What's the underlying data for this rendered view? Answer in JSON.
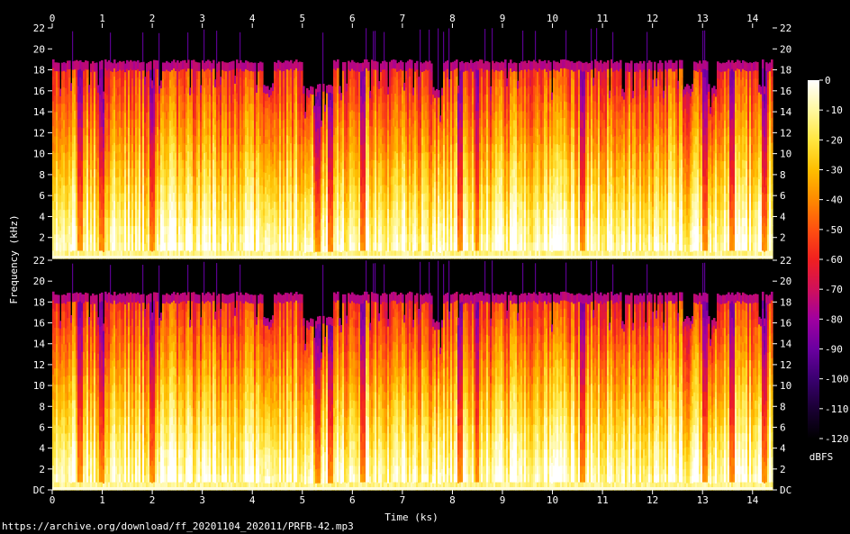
{
  "chart_data": {
    "type": "heatmap",
    "title": "",
    "xlabel": "Time (ks)",
    "ylabel": "Frequency (kHz)",
    "x_ticks": [
      "0",
      "1",
      "2",
      "3",
      "4",
      "5",
      "6",
      "7",
      "8",
      "9",
      "10",
      "11",
      "12",
      "13",
      "14"
    ],
    "xlim": [
      0,
      14.4
    ],
    "channels": [
      {
        "y_ticks": [
          "2",
          "4",
          "6",
          "8",
          "10",
          "12",
          "14",
          "16",
          "18",
          "20",
          "22"
        ],
        "ylim": [
          0,
          22
        ]
      },
      {
        "y_ticks": [
          "DC",
          "2",
          "4",
          "6",
          "8",
          "10",
          "12",
          "14",
          "16",
          "18",
          "20",
          "22"
        ],
        "ylim": [
          0,
          22
        ]
      }
    ],
    "colorbar": {
      "label": "dBFS",
      "ticks": [
        "0",
        "-10",
        "-20",
        "-30",
        "-40",
        "-50",
        "-60",
        "-70",
        "-80",
        "-90",
        "-100",
        "-110",
        "-120"
      ],
      "range": [
        -120,
        0
      ],
      "colors": [
        "#000000",
        "#1a0034",
        "#3a0070",
        "#6a00a0",
        "#a000a0",
        "#d0105a",
        "#f02020",
        "#ff5010",
        "#ff8a00",
        "#ffbe00",
        "#ffe640",
        "#fff8a0",
        "#ffffff"
      ]
    },
    "spectrum": {
      "cutoff_khz": 19,
      "low_cutoff_spans_ks": [
        [
          4.2,
          4.4
        ],
        [
          5.0,
          5.6
        ],
        [
          7.6,
          7.8
        ],
        [
          12.6,
          12.8
        ],
        [
          13.1,
          13.3
        ]
      ],
      "dropout_times_ks": [
        0.55,
        1.0,
        2.0,
        5.3,
        5.55,
        6.2,
        8.15,
        8.5,
        10.6,
        13.05,
        13.6,
        14.25
      ]
    }
  },
  "footer": {
    "url": "https://archive.org/download/ff_20201104_202011/PRFB-42.mp3"
  }
}
